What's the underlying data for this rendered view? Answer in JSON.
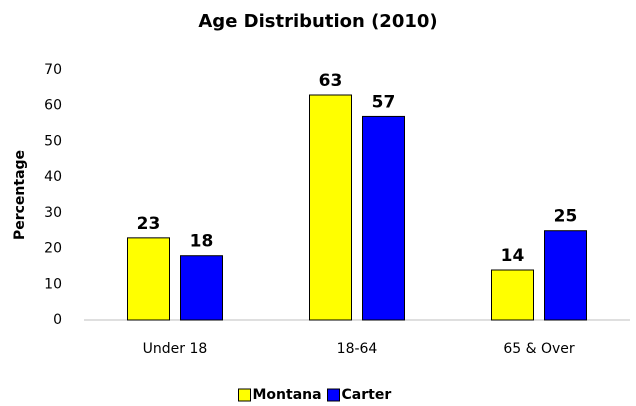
{
  "chart_data": {
    "type": "bar",
    "title": "Age Distribution (2010)",
    "y_label": "Percentage",
    "categories": [
      "Under 18",
      "18-64",
      "65 & Over"
    ],
    "series": [
      {
        "name": "Montana",
        "color": "#ffff00",
        "values": [
          23,
          63,
          14
        ]
      },
      {
        "name": "Carter",
        "color": "#0000ff",
        "values": [
          18,
          57,
          25
        ]
      }
    ],
    "ylim": [
      0,
      70
    ],
    "yticks": [
      0,
      10,
      20,
      30,
      40,
      50,
      60,
      70
    ],
    "grid": false,
    "legend": "bottom"
  }
}
